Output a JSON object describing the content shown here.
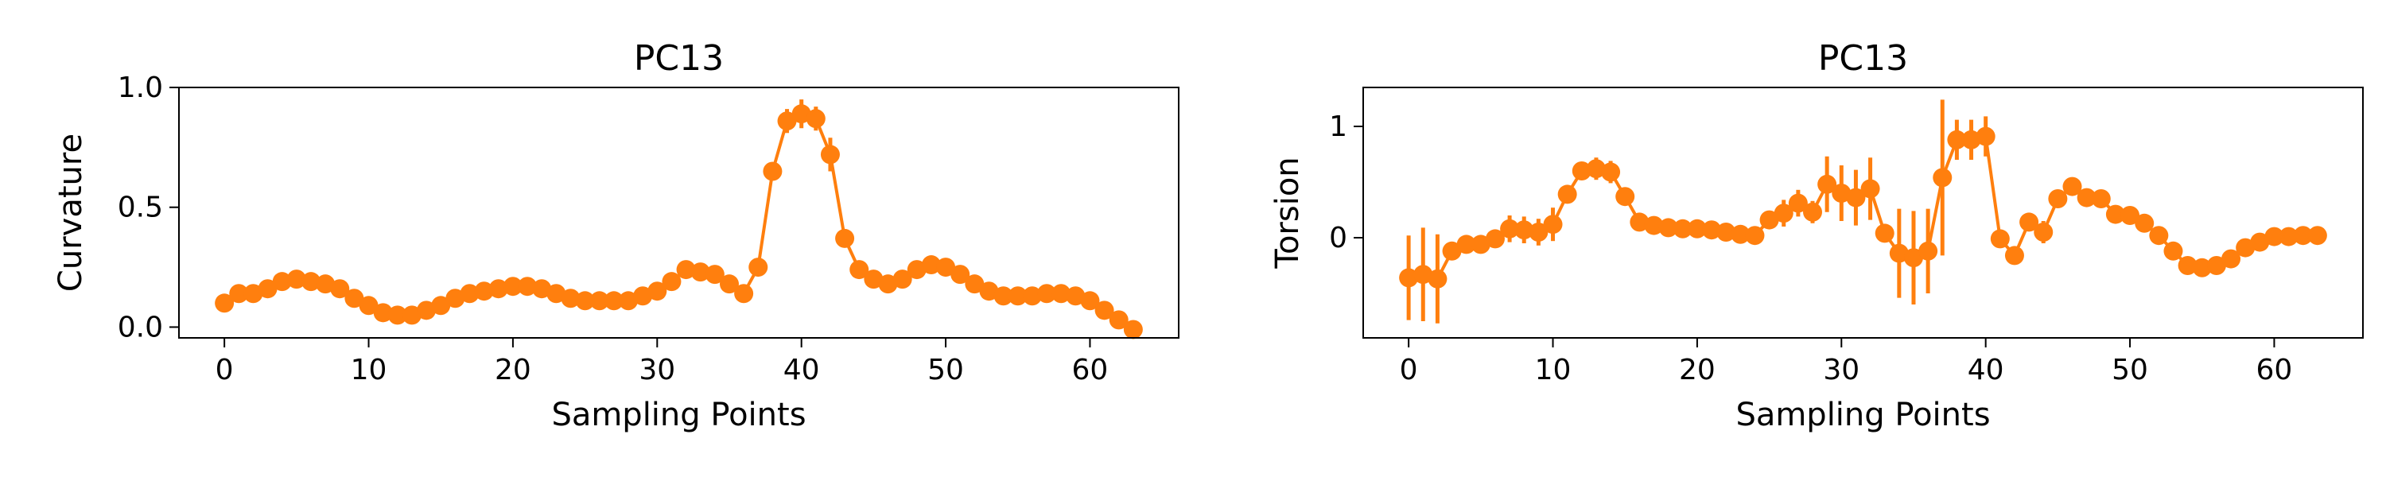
{
  "chart_data": [
    {
      "type": "line",
      "title": "PC13",
      "xlabel": "Sampling Points",
      "ylabel": "Curvature",
      "xlim": [
        -3.15,
        66.15
      ],
      "ylim": [
        -0.045,
        1.0
      ],
      "xticks": [
        0,
        10,
        20,
        30,
        40,
        50,
        60
      ],
      "yticks": [
        0.0,
        0.5,
        1.0
      ],
      "ytick_labels": [
        "0.0",
        "0.5",
        "1.0"
      ],
      "markers": true,
      "error_bars": true,
      "grid": false,
      "series": [
        {
          "color": "#ff7f0e",
          "x": [
            0,
            1,
            2,
            3,
            4,
            5,
            6,
            7,
            8,
            9,
            10,
            11,
            12,
            13,
            14,
            15,
            16,
            17,
            18,
            19,
            20,
            21,
            22,
            23,
            24,
            25,
            26,
            27,
            28,
            29,
            30,
            31,
            32,
            33,
            34,
            35,
            36,
            37,
            38,
            39,
            40,
            41,
            42,
            43,
            44,
            45,
            46,
            47,
            48,
            49,
            50,
            51,
            52,
            53,
            54,
            55,
            56,
            57,
            58,
            59,
            60,
            61,
            62,
            63
          ],
          "y": [
            0.1,
            0.14,
            0.14,
            0.16,
            0.19,
            0.2,
            0.19,
            0.18,
            0.16,
            0.12,
            0.09,
            0.06,
            0.05,
            0.05,
            0.07,
            0.09,
            0.12,
            0.14,
            0.15,
            0.16,
            0.17,
            0.17,
            0.16,
            0.14,
            0.12,
            0.11,
            0.11,
            0.11,
            0.11,
            0.13,
            0.15,
            0.19,
            0.24,
            0.23,
            0.22,
            0.18,
            0.14,
            0.25,
            0.65,
            0.86,
            0.89,
            0.87,
            0.72,
            0.37,
            0.24,
            0.2,
            0.18,
            0.2,
            0.24,
            0.26,
            0.25,
            0.22,
            0.18,
            0.15,
            0.13,
            0.13,
            0.13,
            0.14,
            0.14,
            0.13,
            0.11,
            0.07,
            0.03,
            -0.01
          ],
          "err": [
            0.01,
            0.01,
            0.01,
            0.01,
            0.01,
            0.01,
            0.01,
            0.01,
            0.01,
            0.01,
            0.01,
            0.01,
            0.01,
            0.01,
            0.01,
            0.01,
            0.01,
            0.01,
            0.01,
            0.01,
            0.01,
            0.01,
            0.01,
            0.01,
            0.01,
            0.01,
            0.01,
            0.01,
            0.01,
            0.01,
            0.01,
            0.01,
            0.02,
            0.02,
            0.02,
            0.02,
            0.02,
            0.02,
            0.02,
            0.05,
            0.06,
            0.05,
            0.07,
            0.02,
            0.02,
            0.01,
            0.01,
            0.01,
            0.01,
            0.01,
            0.01,
            0.01,
            0.01,
            0.01,
            0.01,
            0.01,
            0.01,
            0.01,
            0.01,
            0.01,
            0.01,
            0.01,
            0.01,
            0.01
          ]
        }
      ]
    },
    {
      "type": "line",
      "title": "PC13",
      "xlabel": "Sampling Points",
      "ylabel": "Torsion",
      "xlim": [
        -3.15,
        66.15
      ],
      "ylim": [
        -0.9,
        1.35
      ],
      "xticks": [
        0,
        10,
        20,
        30,
        40,
        50,
        60
      ],
      "yticks": [
        0,
        1
      ],
      "ytick_labels": [
        "0",
        "1"
      ],
      "markers": true,
      "error_bars": true,
      "grid": false,
      "series": [
        {
          "color": "#ff7f0e",
          "x": [
            0,
            1,
            2,
            3,
            4,
            5,
            6,
            7,
            8,
            9,
            10,
            11,
            12,
            13,
            14,
            15,
            16,
            17,
            18,
            19,
            20,
            21,
            22,
            23,
            24,
            25,
            26,
            27,
            28,
            29,
            30,
            31,
            32,
            33,
            34,
            35,
            36,
            37,
            38,
            39,
            40,
            41,
            42,
            43,
            44,
            45,
            46,
            47,
            48,
            49,
            50,
            51,
            52,
            53,
            54,
            55,
            56,
            57,
            58,
            59,
            60,
            61,
            62,
            63
          ],
          "y": [
            -0.36,
            -0.33,
            -0.37,
            -0.12,
            -0.06,
            -0.06,
            -0.01,
            0.08,
            0.07,
            0.05,
            0.12,
            0.39,
            0.6,
            0.62,
            0.59,
            0.37,
            0.14,
            0.11,
            0.09,
            0.08,
            0.08,
            0.07,
            0.05,
            0.03,
            0.02,
            0.16,
            0.22,
            0.31,
            0.23,
            0.48,
            0.4,
            0.36,
            0.44,
            0.04,
            -0.14,
            -0.18,
            -0.12,
            0.54,
            0.88,
            0.88,
            0.91,
            -0.01,
            -0.16,
            0.14,
            0.05,
            0.35,
            0.46,
            0.36,
            0.35,
            0.21,
            0.2,
            0.13,
            0.02,
            -0.12,
            -0.25,
            -0.27,
            -0.25,
            -0.19,
            -0.09,
            -0.04,
            0.01,
            0.01,
            0.02,
            0.02
          ],
          "err": [
            0.38,
            0.42,
            0.4,
            0.08,
            0.06,
            0.05,
            0.07,
            0.12,
            0.12,
            0.12,
            0.15,
            0.08,
            0.08,
            0.1,
            0.1,
            0.06,
            0.04,
            0.03,
            0.03,
            0.03,
            0.03,
            0.03,
            0.03,
            0.03,
            0.05,
            0.08,
            0.12,
            0.12,
            0.1,
            0.25,
            0.25,
            0.25,
            0.28,
            0.05,
            0.4,
            0.42,
            0.38,
            0.7,
            0.18,
            0.18,
            0.18,
            0.05,
            0.05,
            0.07,
            0.1,
            0.08,
            0.08,
            0.06,
            0.06,
            0.03,
            0.03,
            0.03,
            0.03,
            0.03,
            0.03,
            0.03,
            0.03,
            0.03,
            0.03,
            0.03,
            0.02,
            0.02,
            0.02,
            0.02
          ]
        }
      ]
    }
  ]
}
